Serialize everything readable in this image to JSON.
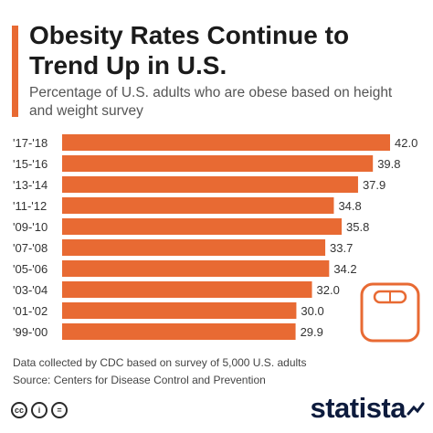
{
  "header": {
    "title": "Obesity Rates Continue to Trend Up in U.S.",
    "subtitle": "Percentage of U.S. adults who are obese based on height and weight survey"
  },
  "chart_data": {
    "type": "bar",
    "orientation": "horizontal",
    "categories": [
      "'17-'18",
      "'15-'16",
      "'13-'14",
      "'11-'12",
      "'09-'10",
      "'07-'08",
      "'05-'06",
      "'03-'04",
      "'01-'02",
      "'99-'00"
    ],
    "values": [
      42.0,
      39.8,
      37.9,
      34.8,
      35.8,
      33.7,
      34.2,
      32.0,
      30.0,
      29.9
    ],
    "value_labels": [
      "42.0",
      "39.8",
      "37.9",
      "34.8",
      "35.8",
      "33.7",
      "34.2",
      "32.0",
      "30.0",
      "29.9"
    ],
    "bar_color": "#e86a33",
    "grid": false,
    "legend": "none"
  },
  "footer": {
    "note": "Data collected by CDC based on survey of 5,000 U.S. adults",
    "source": "Source: Centers for Disease Control and Prevention",
    "license_icons": [
      "cc",
      "i",
      "="
    ],
    "brand": "statista"
  }
}
